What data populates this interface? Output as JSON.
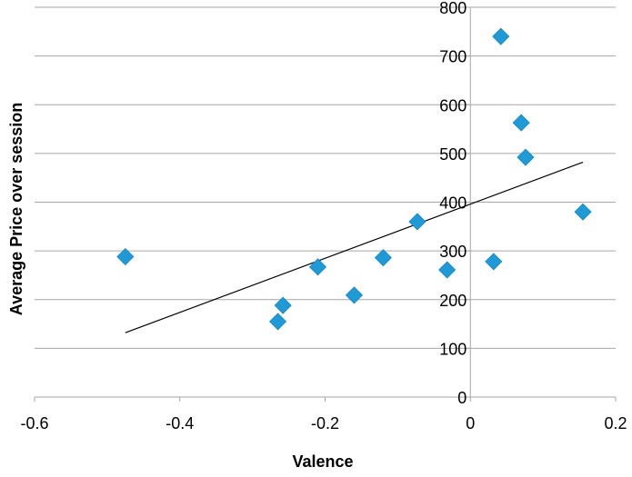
{
  "chart_data": {
    "type": "scatter",
    "title": "",
    "xlabel": "Valence",
    "ylabel": "Average Price over session",
    "xlim": [
      -0.6,
      0.2
    ],
    "ylim": [
      0,
      800
    ],
    "x_ticks": [
      -0.6,
      -0.4,
      -0.2,
      0,
      0.2
    ],
    "x_tick_labels": [
      "-0.6",
      "-0.4",
      "-0.2",
      "0",
      "0.2"
    ],
    "y_ticks": [
      0,
      100,
      200,
      300,
      400,
      500,
      600,
      700,
      800
    ],
    "y_tick_labels": [
      "0",
      "100",
      "200",
      "300",
      "400",
      "500",
      "600",
      "700",
      "800"
    ],
    "grid": "horizontal",
    "legend": "none",
    "marker": "diamond",
    "marker_color": "#1f9ad6",
    "trendline": {
      "type": "linear",
      "x": [
        -0.475,
        0.155
      ],
      "y": [
        132,
        482
      ]
    },
    "points": [
      {
        "x": -0.475,
        "y": 288
      },
      {
        "x": -0.265,
        "y": 155
      },
      {
        "x": -0.258,
        "y": 188
      },
      {
        "x": -0.21,
        "y": 267
      },
      {
        "x": -0.16,
        "y": 209
      },
      {
        "x": -0.12,
        "y": 286
      },
      {
        "x": -0.073,
        "y": 360
      },
      {
        "x": -0.032,
        "y": 261
      },
      {
        "x": 0.032,
        "y": 278
      },
      {
        "x": 0.042,
        "y": 740
      },
      {
        "x": 0.07,
        "y": 563
      },
      {
        "x": 0.076,
        "y": 492
      },
      {
        "x": 0.155,
        "y": 380
      }
    ]
  }
}
